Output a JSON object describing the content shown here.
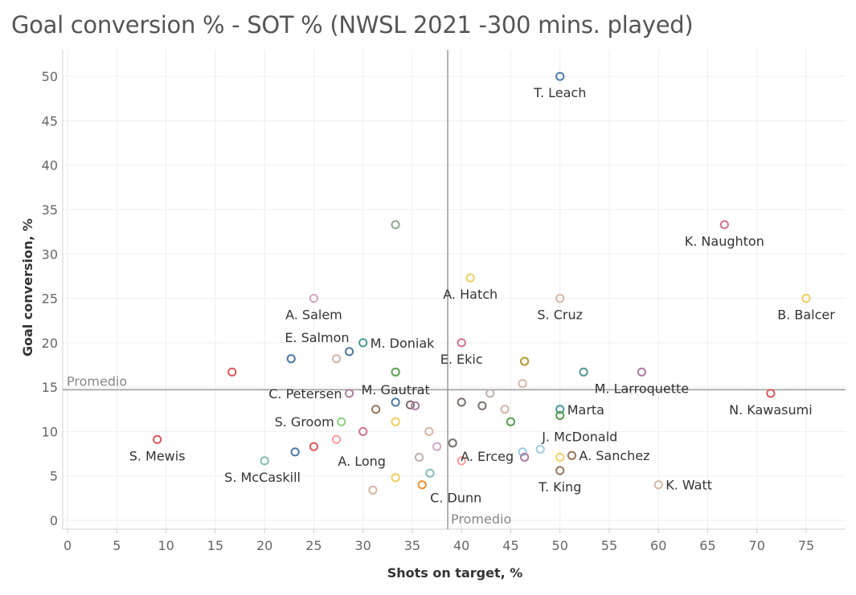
{
  "chart_data": {
    "type": "scatter",
    "title": "Goal conversion % - SOT % (NWSL 2021 -300 mins. played)",
    "xlabel": "Shots on target, %",
    "ylabel": "Goal conversion, %",
    "xlim": [
      -0.5,
      79
    ],
    "ylim": [
      -1,
      53
    ],
    "xticks": [
      0,
      5,
      10,
      15,
      20,
      25,
      30,
      35,
      40,
      45,
      50,
      55,
      60,
      65,
      70,
      75
    ],
    "yticks": [
      0,
      5,
      10,
      15,
      20,
      25,
      30,
      35,
      40,
      45,
      50
    ],
    "grid": true,
    "reference_lines": {
      "x": {
        "value": 38.6,
        "label": "Promedio"
      },
      "y": {
        "value": 14.7,
        "label": "Promedio"
      }
    },
    "points": [
      {
        "x": 50.0,
        "y": 50.0,
        "color": "#4e79a7",
        "label": "T. Leach",
        "lpos": "below"
      },
      {
        "x": 33.3,
        "y": 33.3,
        "color": "#8fa88f",
        "label": ""
      },
      {
        "x": 66.7,
        "y": 33.3,
        "color": "#d37295",
        "label": "K. Naughton",
        "lpos": "below"
      },
      {
        "x": 40.9,
        "y": 27.3,
        "color": "#f1ce63",
        "label": "A. Hatch",
        "lpos": "below"
      },
      {
        "x": 25.0,
        "y": 25.0,
        "color": "#d4a6c8",
        "label": "A. Salem",
        "lpos": "below"
      },
      {
        "x": 50.0,
        "y": 25.0,
        "color": "#d7b5a6",
        "label": "S. Cruz",
        "lpos": "below"
      },
      {
        "x": 75.0,
        "y": 25.0,
        "color": "#f1ce63",
        "label": "B. Balcer",
        "lpos": "below"
      },
      {
        "x": 28.6,
        "y": 19.0,
        "color": "#4e79a7",
        "label": "E. Salmon",
        "lpos": "above-left"
      },
      {
        "x": 30.0,
        "y": 20.0,
        "color": "#499894",
        "label": "M. Doniak",
        "lpos": "right"
      },
      {
        "x": 40.0,
        "y": 20.0,
        "color": "#d37295",
        "label": "E. Ekic",
        "lpos": "below"
      },
      {
        "x": 22.7,
        "y": 18.2,
        "color": "#4e79a7",
        "label": ""
      },
      {
        "x": 27.3,
        "y": 18.2,
        "color": "#d7b5a6",
        "label": ""
      },
      {
        "x": 16.7,
        "y": 16.7,
        "color": "#e15759",
        "label": ""
      },
      {
        "x": 33.3,
        "y": 16.7,
        "color": "#59a14f",
        "label": ""
      },
      {
        "x": 46.4,
        "y": 17.9,
        "color": "#b6992d",
        "label": ""
      },
      {
        "x": 52.4,
        "y": 16.7,
        "color": "#499894",
        "label": ""
      },
      {
        "x": 58.3,
        "y": 16.7,
        "color": "#b07aa1",
        "label": "M. Larroquette",
        "lpos": "below"
      },
      {
        "x": 71.4,
        "y": 14.3,
        "color": "#e15759",
        "label": "N. Kawasumi",
        "lpos": "below"
      },
      {
        "x": 28.6,
        "y": 14.3,
        "color": "#b07aa1",
        "label": "C. Petersen",
        "lpos": "left"
      },
      {
        "x": 33.3,
        "y": 13.3,
        "color": "#4e79a7",
        "label": "M. Gautrat",
        "lpos": "above"
      },
      {
        "x": 46.2,
        "y": 15.4,
        "color": "#d7b5a6",
        "label": ""
      },
      {
        "x": 42.9,
        "y": 14.3,
        "color": "#bab0ac",
        "label": ""
      },
      {
        "x": 31.3,
        "y": 12.5,
        "color": "#9d7660",
        "label": ""
      },
      {
        "x": 34.8,
        "y": 13.0,
        "color": "#79706e",
        "label": ""
      },
      {
        "x": 35.3,
        "y": 12.9,
        "color": "#b07aa1",
        "label": ""
      },
      {
        "x": 40.0,
        "y": 13.3,
        "color": "#79706e",
        "label": ""
      },
      {
        "x": 42.1,
        "y": 12.9,
        "color": "#79706e",
        "label": ""
      },
      {
        "x": 44.4,
        "y": 12.5,
        "color": "#d7b5a6",
        "label": ""
      },
      {
        "x": 50.0,
        "y": 12.5,
        "color": "#499894",
        "label": "Marta",
        "lpos": "right"
      },
      {
        "x": 50.0,
        "y": 11.8,
        "color": "#59a14f",
        "label": ""
      },
      {
        "x": 45.0,
        "y": 11.1,
        "color": "#59a14f",
        "label": ""
      },
      {
        "x": 27.8,
        "y": 11.1,
        "color": "#8cd17d",
        "label": "S. Groom",
        "lpos": "left"
      },
      {
        "x": 33.3,
        "y": 11.1,
        "color": "#f1ce63",
        "label": ""
      },
      {
        "x": 30.0,
        "y": 10.0,
        "color": "#d37295",
        "label": ""
      },
      {
        "x": 36.7,
        "y": 10.0,
        "color": "#d7b5a6",
        "label": ""
      },
      {
        "x": 9.1,
        "y": 9.1,
        "color": "#e15759",
        "label": "S. Mewis",
        "lpos": "below"
      },
      {
        "x": 27.3,
        "y": 9.1,
        "color": "#ff9d9a",
        "label": ""
      },
      {
        "x": 39.1,
        "y": 8.7,
        "color": "#79706e",
        "label": "A. Erceg",
        "lpos": "right-low"
      },
      {
        "x": 25.0,
        "y": 8.3,
        "color": "#e15759",
        "label": "A. Long",
        "lpos": "below-right"
      },
      {
        "x": 37.5,
        "y": 8.3,
        "color": "#d4a6c8",
        "label": ""
      },
      {
        "x": 23.1,
        "y": 7.7,
        "color": "#4e79a7",
        "label": ""
      },
      {
        "x": 48.0,
        "y": 8.0,
        "color": "#a0cbe8",
        "label": "J. McDonald",
        "lpos": "above-right"
      },
      {
        "x": 46.2,
        "y": 7.7,
        "color": "#a0cbe8",
        "label": ""
      },
      {
        "x": 46.4,
        "y": 7.1,
        "color": "#b07aa1",
        "label": ""
      },
      {
        "x": 50.0,
        "y": 7.1,
        "color": "#f1ce63",
        "label": ""
      },
      {
        "x": 51.2,
        "y": 7.3,
        "color": "#9d7660",
        "label": "A. Sanchez",
        "lpos": "right"
      },
      {
        "x": 35.7,
        "y": 7.1,
        "color": "#bab0ac",
        "label": ""
      },
      {
        "x": 20.0,
        "y": 6.7,
        "color": "#86bcb6",
        "label": "S. McCaskill",
        "lpos": "below-left"
      },
      {
        "x": 40.0,
        "y": 6.7,
        "color": "#ff9d9a",
        "label": ""
      },
      {
        "x": 50.0,
        "y": 5.6,
        "color": "#9d7660",
        "label": "T. King",
        "lpos": "below"
      },
      {
        "x": 36.8,
        "y": 5.3,
        "color": "#86bcb6",
        "label": ""
      },
      {
        "x": 33.3,
        "y": 4.8,
        "color": "#f1ce63",
        "label": ""
      },
      {
        "x": 36.0,
        "y": 4.0,
        "color": "#f28e2b",
        "label": "C. Dunn",
        "lpos": "right-low"
      },
      {
        "x": 60.0,
        "y": 4.0,
        "color": "#d7b5a6",
        "label": "K. Watt",
        "lpos": "right"
      },
      {
        "x": 31.0,
        "y": 3.4,
        "color": "#d7b5a6",
        "label": ""
      }
    ]
  }
}
